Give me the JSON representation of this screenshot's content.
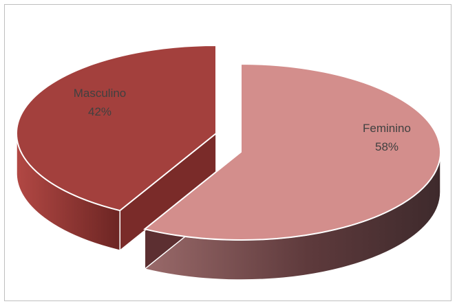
{
  "chart_data": {
    "type": "pie",
    "title": "",
    "three_d": true,
    "exploded": true,
    "categories": [
      "Feminino",
      "Masculino"
    ],
    "values": [
      58,
      42
    ],
    "labels": [
      {
        "name": "Feminino",
        "percent": "58%"
      },
      {
        "name": "Masculino",
        "percent": "42%"
      }
    ],
    "colors": {
      "Feminino": "#d38e8c",
      "Masculino": "#a3403d"
    },
    "legend": "none"
  }
}
